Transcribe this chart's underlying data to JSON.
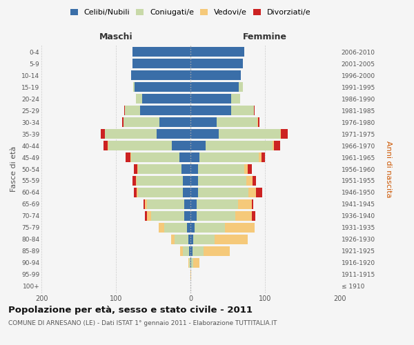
{
  "age_groups": [
    "100+",
    "95-99",
    "90-94",
    "85-89",
    "80-84",
    "75-79",
    "70-74",
    "65-69",
    "60-64",
    "55-59",
    "50-54",
    "45-49",
    "40-44",
    "35-39",
    "30-34",
    "25-29",
    "20-24",
    "15-19",
    "10-14",
    "5-9",
    "0-4"
  ],
  "birth_years": [
    "≤ 1910",
    "1911-1915",
    "1916-1920",
    "1921-1925",
    "1926-1930",
    "1931-1935",
    "1936-1940",
    "1941-1945",
    "1946-1950",
    "1951-1955",
    "1956-1960",
    "1961-1965",
    "1966-1970",
    "1971-1975",
    "1976-1980",
    "1981-1985",
    "1986-1990",
    "1991-1995",
    "1996-2000",
    "2001-2005",
    "2006-2010"
  ],
  "maschi": {
    "celibi": [
      0,
      0,
      0,
      2,
      3,
      5,
      8,
      8,
      10,
      10,
      12,
      15,
      25,
      45,
      42,
      68,
      65,
      75,
      80,
      78,
      78
    ],
    "coniugati": [
      0,
      0,
      2,
      8,
      18,
      30,
      45,
      50,
      60,
      62,
      58,
      65,
      85,
      70,
      48,
      20,
      8,
      2,
      0,
      0,
      0
    ],
    "vedovi": [
      0,
      0,
      1,
      4,
      5,
      8,
      5,
      3,
      2,
      1,
      1,
      1,
      1,
      0,
      0,
      0,
      0,
      0,
      0,
      0,
      0
    ],
    "divorziati": [
      0,
      0,
      0,
      0,
      0,
      0,
      3,
      2,
      4,
      5,
      5,
      6,
      6,
      5,
      2,
      1,
      0,
      0,
      0,
      0,
      0
    ]
  },
  "femmine": {
    "nubili": [
      0,
      0,
      1,
      3,
      4,
      6,
      8,
      8,
      10,
      10,
      10,
      12,
      20,
      38,
      35,
      55,
      55,
      65,
      68,
      70,
      72
    ],
    "coniugate": [
      0,
      0,
      3,
      15,
      28,
      40,
      52,
      56,
      68,
      65,
      62,
      80,
      90,
      82,
      55,
      30,
      12,
      5,
      0,
      0,
      0
    ],
    "vedove": [
      0,
      1,
      8,
      35,
      45,
      40,
      22,
      18,
      10,
      8,
      5,
      3,
      2,
      1,
      1,
      0,
      0,
      0,
      0,
      0,
      0
    ],
    "divorziate": [
      0,
      0,
      0,
      0,
      0,
      0,
      5,
      2,
      8,
      5,
      5,
      5,
      8,
      10,
      2,
      1,
      0,
      0,
      0,
      0,
      0
    ]
  },
  "colors": {
    "celibi_nubili": "#3a6ea8",
    "coniugati": "#c8d9a8",
    "vedovi": "#f5c97a",
    "divorziati": "#cc2222"
  },
  "title": "Popolazione per età, sesso e stato civile - 2011",
  "subtitle": "COMUNE DI ARNESANO (LE) - Dati ISTAT 1° gennaio 2011 - Elaborazione TUTTITALIA.IT",
  "xlabel_left": "Maschi",
  "xlabel_right": "Femmine",
  "ylabel_left": "Fasce di età",
  "ylabel_right": "Anni di nascita",
  "xlim": 200,
  "background_color": "#f5f5f5"
}
